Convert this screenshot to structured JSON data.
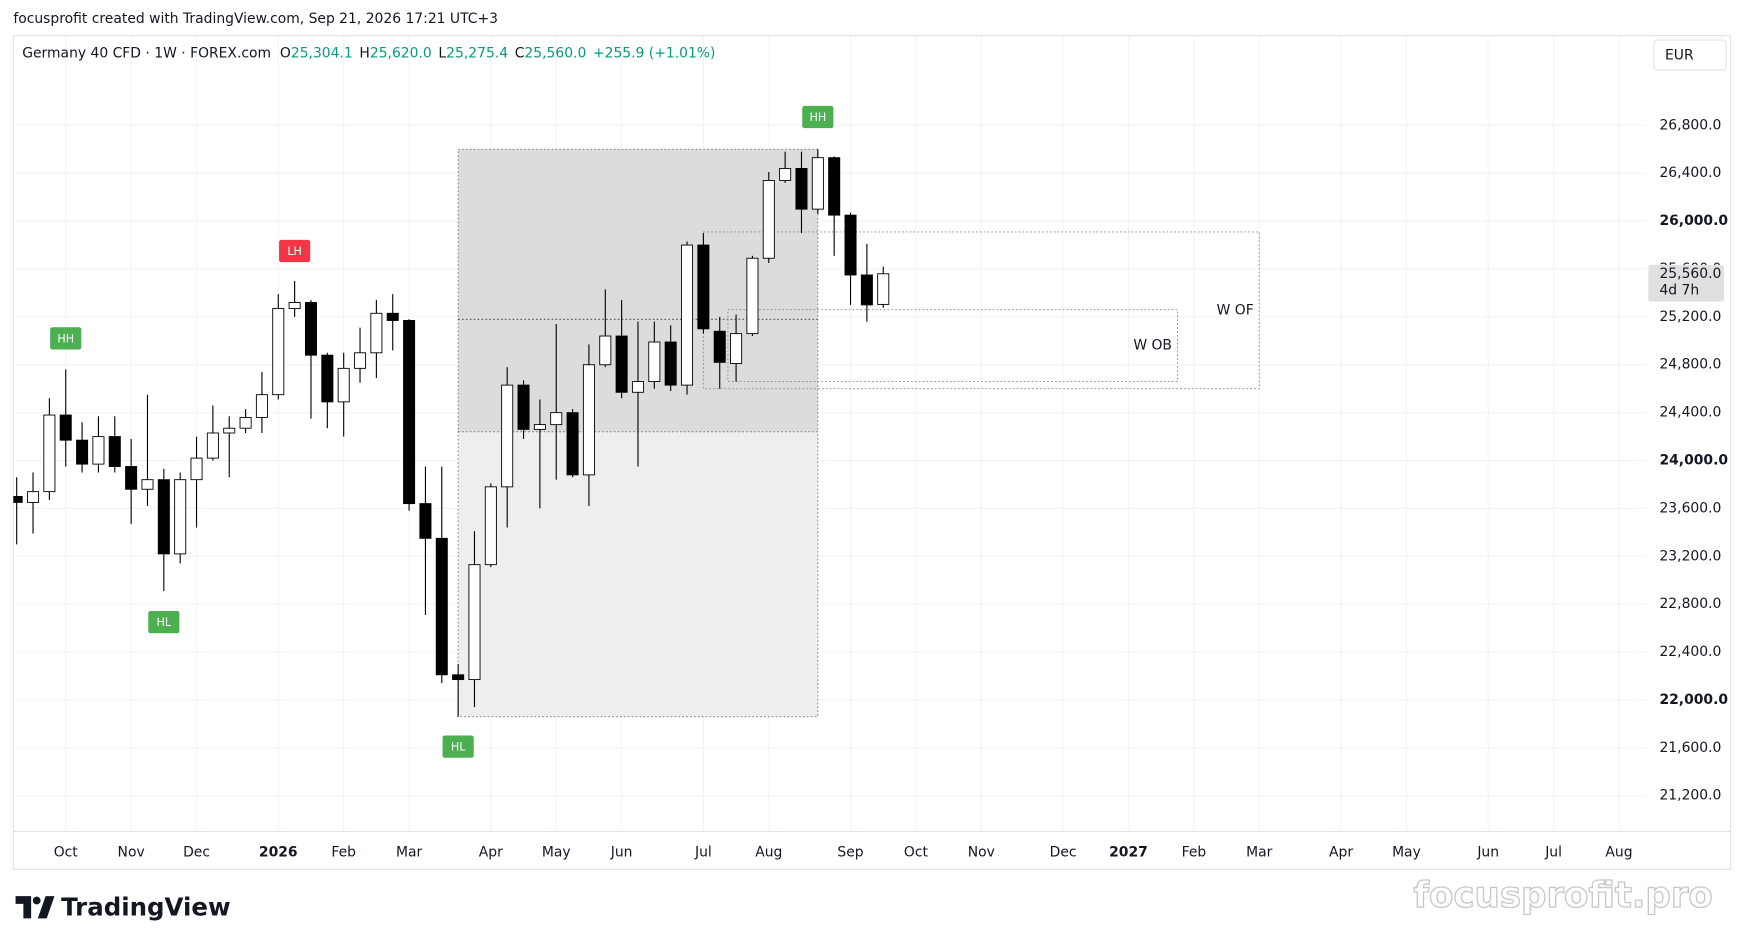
{
  "header": "focusprofit created with TradingView.com, Sep 21, 2026 17:21 UTC+3",
  "footer": {
    "brand": "TradingView",
    "watermark": "focusprofit.pro"
  },
  "chart_data": {
    "type": "candlestick",
    "legend": {
      "symbol": "Germany 40 CFD · 1W · FOREX.com",
      "fields": [
        {
          "key": "O",
          "value": "25,304.1"
        },
        {
          "key": "H",
          "value": "25,620.0"
        },
        {
          "key": "L",
          "value": "25,275.4"
        },
        {
          "key": "C",
          "value": "25,560.0"
        }
      ],
      "change": "+255.9 (+1.01%)"
    },
    "currency": "EUR",
    "last_price_label": "25,560.0",
    "countdown": "4d 7h",
    "up_color": "#ffffff",
    "down_color": "#000000",
    "grid": true,
    "categories": [
      null,
      null,
      null,
      "Oct",
      null,
      null,
      null,
      "Nov",
      null,
      null,
      null,
      "Dec",
      null,
      null,
      null,
      null,
      "2026",
      null,
      null,
      null,
      "Feb",
      null,
      null,
      null,
      "Mar",
      null,
      null,
      null,
      null,
      "Apr",
      null,
      null,
      null,
      "May",
      null,
      null,
      null,
      "Jun",
      null,
      null,
      null,
      null,
      "Jul",
      null,
      null,
      null,
      "Aug",
      null,
      null,
      null,
      null,
      "Sep",
      null,
      null,
      null,
      "Oct",
      null,
      null,
      null,
      "Nov",
      null,
      null,
      null,
      null,
      "Dec",
      null,
      null,
      null,
      "2027",
      null,
      null,
      null,
      "Feb",
      null,
      null,
      null,
      "Mar",
      null,
      null,
      null,
      null,
      "Apr",
      null,
      null,
      null,
      "May",
      null,
      null,
      null,
      null,
      "Jun",
      null,
      null,
      null,
      "Jul",
      null,
      null,
      null,
      "Aug",
      null
    ],
    "open": [
      23700,
      23650,
      23740,
      24380,
      24170,
      23970,
      24200,
      23950,
      23760,
      23840,
      23220,
      23840,
      24020,
      24230,
      24270,
      24360,
      24550,
      25270,
      25320,
      24880,
      24490,
      24770,
      24900,
      25230,
      25170,
      23640,
      23350,
      22210,
      22170,
      23130,
      23780,
      24630,
      24260,
      24300,
      24400,
      23880,
      24800,
      25040,
      24570,
      24660,
      24990,
      24630,
      25800,
      25080,
      24810,
      25060,
      25690,
      26340,
      26440,
      26100,
      26530,
      26050,
      25550,
      25304.1,
      null,
      null,
      null,
      null,
      null,
      null,
      null,
      null,
      null,
      null,
      null,
      null,
      null,
      null,
      null,
      null,
      null,
      null,
      null,
      null,
      null,
      null,
      null,
      null,
      null,
      null,
      null,
      null,
      null,
      null,
      null,
      null,
      null,
      null,
      null,
      null,
      null,
      null,
      null,
      null,
      null,
      null,
      null,
      null,
      null,
      null
    ],
    "high": [
      23860,
      23900,
      24520,
      24760,
      24320,
      24370,
      24370,
      24180,
      24550,
      23930,
      23900,
      24200,
      24460,
      24370,
      24430,
      24740,
      25390,
      25500,
      25340,
      24900,
      24900,
      25110,
      25340,
      25390,
      25180,
      23950,
      23950,
      22300,
      23410,
      23810,
      24780,
      24670,
      24510,
      25140,
      24430,
      24970,
      25430,
      25340,
      25160,
      25160,
      25130,
      25830,
      25900,
      25200,
      25220,
      25710,
      26410,
      26580,
      26580,
      26600,
      26540,
      26070,
      25810,
      25620,
      null,
      null,
      null,
      null,
      null,
      null,
      null,
      null,
      null,
      null,
      null,
      null,
      null,
      null,
      null,
      null,
      null,
      null,
      null,
      null,
      null,
      null,
      null,
      null,
      null,
      null,
      null,
      null,
      null,
      null,
      null,
      null,
      null,
      null,
      null,
      null,
      null,
      null,
      null,
      null,
      null,
      null,
      null,
      null,
      null,
      null
    ],
    "low": [
      23300,
      23390,
      23670,
      23950,
      23900,
      23900,
      23900,
      23470,
      23620,
      22910,
      23140,
      23440,
      24000,
      23860,
      24230,
      24230,
      24510,
      25200,
      24350,
      24270,
      24200,
      24650,
      24690,
      24920,
      23580,
      22710,
      22140,
      21860,
      21940,
      23110,
      23440,
      24180,
      23600,
      23840,
      23860,
      23620,
      24780,
      24520,
      23950,
      24600,
      24580,
      24550,
      25060,
      24600,
      24660,
      25040,
      25650,
      26320,
      25900,
      26060,
      25710,
      25300,
      25160,
      25275.4,
      null,
      null,
      null,
      null,
      null,
      null,
      null,
      null,
      null,
      null,
      null,
      null,
      null,
      null,
      null,
      null,
      null,
      null,
      null,
      null,
      null,
      null,
      null,
      null,
      null,
      null,
      null,
      null,
      null,
      null,
      null,
      null,
      null,
      null,
      null,
      null,
      null,
      null,
      null,
      null,
      null,
      null,
      null,
      null,
      null,
      null
    ],
    "close": [
      23650,
      23740,
      24380,
      24170,
      23970,
      24200,
      23950,
      23760,
      23840,
      23220,
      23840,
      24020,
      24230,
      24270,
      24360,
      24550,
      25270,
      25320,
      24880,
      24490,
      24770,
      24900,
      25230,
      25170,
      23640,
      23350,
      22210,
      22170,
      23130,
      23780,
      24630,
      24260,
      24300,
      24400,
      23880,
      24800,
      25040,
      24570,
      24660,
      24990,
      24630,
      25800,
      25100,
      24820,
      25060,
      25690,
      26340,
      26440,
      26100,
      26530,
      26050,
      25550,
      25300,
      25560,
      null,
      null,
      null,
      null,
      null,
      null,
      null,
      null,
      null,
      null,
      null,
      null,
      null,
      null,
      null,
      null,
      null,
      null,
      null,
      null,
      null,
      null,
      null,
      null,
      null,
      null,
      null,
      null,
      null,
      null,
      null,
      null,
      null,
      null,
      null,
      null,
      null,
      null,
      null,
      null,
      null,
      null,
      null,
      null,
      null,
      null
    ],
    "ylim": [
      20900,
      27550
    ],
    "yticks": [
      {
        "value": 21200,
        "label": "21,200.0"
      },
      {
        "value": 21600,
        "label": "21,600.0"
      },
      {
        "value": 22000,
        "label": "22,000.0"
      },
      {
        "value": 22400,
        "label": "22,400.0"
      },
      {
        "value": 22800,
        "label": "22,800.0"
      },
      {
        "value": 23200,
        "label": "23,200.0"
      },
      {
        "value": 23600,
        "label": "23,600.0"
      },
      {
        "value": 24000,
        "label": "24,000.0"
      },
      {
        "value": 24400,
        "label": "24,400.0"
      },
      {
        "value": 24800,
        "label": "24,800.0"
      },
      {
        "value": 25200,
        "label": "25,200.0"
      },
      {
        "value": 25600,
        "label": "25,600.0"
      },
      {
        "value": 26000,
        "label": "26,000.0"
      },
      {
        "value": 26400,
        "label": "26,400.0"
      },
      {
        "value": 26800,
        "label": "26,800.0"
      }
    ],
    "zones": [
      {
        "from": 27,
        "to": 49,
        "top": 26600,
        "bottom": 24240,
        "color": "#dcdcdc"
      },
      {
        "from": 27,
        "to": 49,
        "top": 24240,
        "bottom": 21860,
        "color": "#eeeeee"
      }
    ],
    "levels": [
      {
        "from": 27,
        "to": 49,
        "value": 25180
      }
    ],
    "boxes": [
      {
        "label": "W OF",
        "from": 42,
        "to": 76,
        "top": 25910,
        "bottom": 24600
      },
      {
        "label": "W OB",
        "from": 43.5,
        "to": 71,
        "top": 25260,
        "bottom": 24660
      }
    ],
    "annotations": [
      {
        "text": "HH",
        "index": 3,
        "price": 25020,
        "color": "#4caf50"
      },
      {
        "text": "HL",
        "index": 9,
        "price": 22650,
        "color": "#4caf50"
      },
      {
        "text": "LH",
        "index": 17,
        "price": 25750,
        "color": "#f23645"
      },
      {
        "text": "HL",
        "index": 27,
        "price": 21610,
        "color": "#4caf50"
      },
      {
        "text": "HH",
        "index": 49,
        "price": 26870,
        "color": "#4caf50"
      }
    ]
  }
}
